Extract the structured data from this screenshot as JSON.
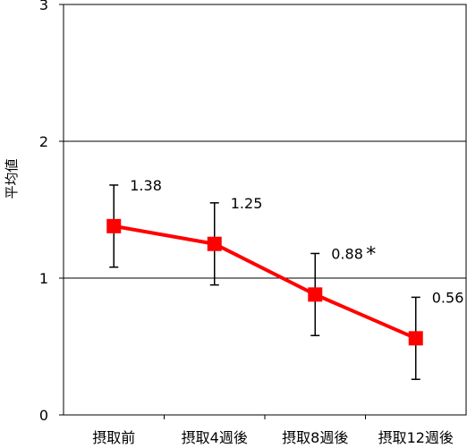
{
  "chart_data": {
    "type": "line",
    "ylabel": "平均値",
    "ylim": [
      0,
      3
    ],
    "y_ticks": [
      "0",
      "1",
      "2",
      "3"
    ],
    "grid_y": true,
    "categories": [
      "摂取前",
      "摂取4週後",
      "摂取8週後",
      "摂取12週後"
    ],
    "series": [
      {
        "values": [
          1.38,
          1.25,
          0.88,
          0.56
        ],
        "error_low": [
          1.08,
          0.95,
          0.58,
          0.26
        ],
        "error_high": [
          1.68,
          1.55,
          1.18,
          0.86
        ],
        "color": "#ff0000",
        "marker": "square"
      }
    ],
    "data_labels": [
      "1.38",
      "1.25",
      "0.88",
      "0.56"
    ],
    "significance": [
      "",
      "",
      "*",
      "**"
    ]
  }
}
